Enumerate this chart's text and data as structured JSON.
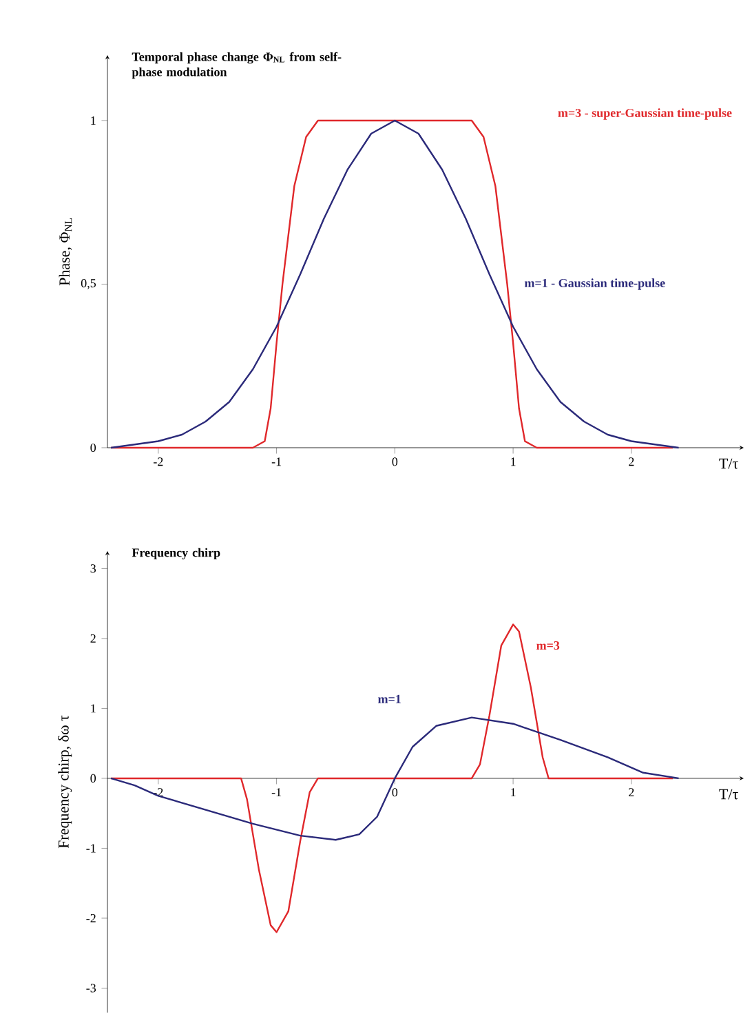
{
  "chart_data": [
    {
      "type": "line",
      "title": "Temporal phase change Φ$_{NL}$ from self-phase modulation",
      "xlabel": "T/τ",
      "ylabel": "Phase, Φ$_{NL}$",
      "xlim": [
        -2.43,
        2.95
      ],
      "ylim": [
        0,
        1.2
      ],
      "xticks": [
        -2,
        -1,
        0,
        1,
        2
      ],
      "yticks": [
        0,
        {
          "value": 0.5,
          "label": "0,5"
        },
        1
      ],
      "series": [
        {
          "name": "m=3 - super-Gaussian time-pulse",
          "color": "#e0282b",
          "x": [
            -2.4,
            -1.2,
            -1.1,
            -1.05,
            -1.0,
            -0.95,
            -0.85,
            -0.75,
            -0.65,
            -0.5,
            0,
            0.5,
            0.65,
            0.75,
            0.85,
            0.95,
            1.0,
            1.05,
            1.1,
            1.2,
            2.35
          ],
          "values": [
            0,
            0,
            0.02,
            0.12,
            0.32,
            0.5,
            0.8,
            0.95,
            1,
            1,
            1,
            1,
            1,
            0.95,
            0.8,
            0.5,
            0.32,
            0.12,
            0.02,
            0,
            0
          ]
        },
        {
          "name": "m=1 - Gaussian time-pulse",
          "color": "#2b2a7a",
          "x": [
            -2.4,
            -2.2,
            -2.0,
            -1.8,
            -1.6,
            -1.4,
            -1.2,
            -1.0,
            -0.8,
            -0.6,
            -0.4,
            -0.2,
            0,
            0.2,
            0.4,
            0.6,
            0.8,
            1.0,
            1.2,
            1.4,
            1.6,
            1.8,
            2.0,
            2.2,
            2.4
          ],
          "values": [
            0,
            0.01,
            0.02,
            0.04,
            0.08,
            0.14,
            0.24,
            0.37,
            0.53,
            0.7,
            0.85,
            0.96,
            1,
            0.96,
            0.85,
            0.7,
            0.53,
            0.37,
            0.24,
            0.14,
            0.08,
            0.04,
            0.02,
            0.01,
            0
          ]
        }
      ]
    },
    {
      "type": "line",
      "title": "Frequency chirp",
      "xlabel": "T/τ",
      "ylabel": "Frequency chirp, δω τ",
      "xlim": [
        -2.43,
        2.95
      ],
      "ylim": [
        -3.35,
        3.25
      ],
      "xticks": [
        -2,
        -1,
        0,
        1,
        2
      ],
      "yticks": [
        -3,
        -2,
        -1,
        0,
        1,
        2,
        3
      ],
      "series": [
        {
          "name": "m=3",
          "color": "#e0282b",
          "x": [
            -2.4,
            -1.3,
            -1.25,
            -1.15,
            -1.05,
            -1.0,
            -0.9,
            -0.8,
            -0.72,
            -0.65,
            0.65,
            0.72,
            0.8,
            0.9,
            1.0,
            1.05,
            1.15,
            1.25,
            1.3,
            2.35
          ],
          "values": [
            0,
            0,
            -0.3,
            -1.3,
            -2.1,
            -2.2,
            -1.9,
            -0.9,
            -0.2,
            0,
            0,
            0.2,
            0.9,
            1.9,
            2.2,
            2.1,
            1.3,
            0.3,
            0,
            0
          ]
        },
        {
          "name": "m=1",
          "color": "#2b2a7a",
          "x": [
            -2.4,
            -2.2,
            -2.0,
            -1.6,
            -1.2,
            -0.8,
            -0.5,
            -0.3,
            -0.15,
            0,
            0.15,
            0.35,
            0.65,
            1.0,
            1.4,
            1.8,
            2.1,
            2.4
          ],
          "values": [
            0,
            -0.1,
            -0.25,
            -0.45,
            -0.65,
            -0.82,
            -0.88,
            -0.8,
            -0.55,
            0,
            0.45,
            0.75,
            0.87,
            0.78,
            0.55,
            0.3,
            0.08,
            0
          ]
        }
      ]
    }
  ]
}
